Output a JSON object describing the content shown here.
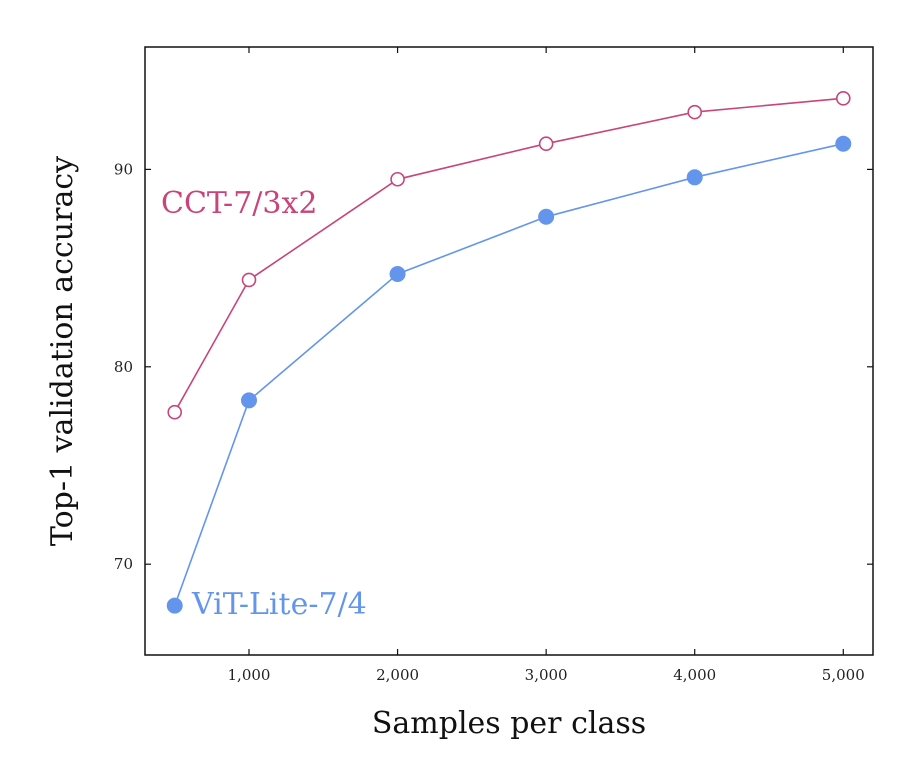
{
  "chart_data": {
    "type": "line",
    "title": "",
    "xlabel": "Samples per class",
    "ylabel": "Top-1 validation accuracy",
    "xlim": [
      300,
      5200
    ],
    "ylim": [
      65.4,
      96.2
    ],
    "x_ticks": [
      1000,
      2000,
      3000,
      4000,
      5000
    ],
    "x_tick_labels": [
      "1,000",
      "2,000",
      "3,000",
      "4,000",
      "5,000"
    ],
    "y_ticks": [
      70,
      80,
      90
    ],
    "y_tick_labels": [
      "70",
      "80",
      "90"
    ],
    "grid": false,
    "series": [
      {
        "name": "CCT-7/3x2",
        "color": "#c8447a",
        "marker": "open-circle",
        "x": [
          500,
          1000,
          2000,
          3000,
          4000,
          5000
        ],
        "values": [
          77.7,
          84.4,
          89.5,
          91.3,
          92.9,
          93.6
        ]
      },
      {
        "name": "ViT-Lite-7/4",
        "color": "#6495ed",
        "marker": "filled-circle",
        "x": [
          500,
          1000,
          2000,
          3000,
          4000,
          5000
        ],
        "values": [
          67.9,
          78.3,
          84.7,
          87.6,
          89.6,
          91.3
        ]
      }
    ]
  }
}
